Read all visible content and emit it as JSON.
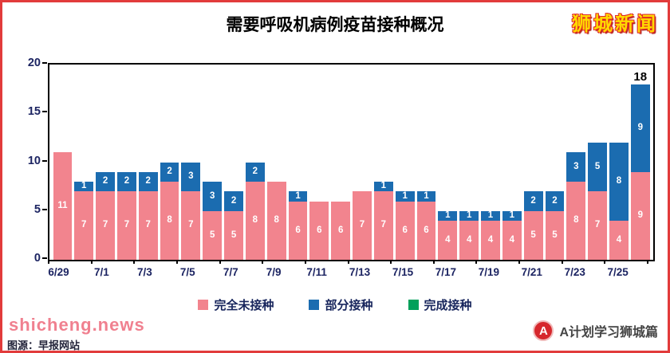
{
  "page": {
    "title": "需要呼吸机病例疫苗接种概况",
    "brand": "狮城新闻",
    "watermark": "shicheng.news",
    "source_note": "图源：早报网站",
    "footer_brand": "A计划学习狮城篇",
    "footer_logo_letter": "A"
  },
  "chart_data": {
    "type": "bar",
    "stacked": true,
    "title": "需要呼吸机病例疫苗接种概况",
    "categories": [
      "6/29",
      "6/30",
      "7/1",
      "7/2",
      "7/3",
      "7/4",
      "7/5",
      "7/6",
      "7/7",
      "7/8",
      "7/9",
      "7/10",
      "7/11",
      "7/12",
      "7/13",
      "7/14",
      "7/15",
      "7/16",
      "7/17",
      "7/18",
      "7/19",
      "7/20",
      "7/21",
      "7/22",
      "7/23",
      "7/24",
      "7/25",
      "7/26"
    ],
    "x_tick_interval": 2,
    "ylim": [
      0,
      20
    ],
    "yticks": [
      0,
      5,
      10,
      15,
      20
    ],
    "grid": false,
    "legend_position": "bottom",
    "series": [
      {
        "name": "完全未接种",
        "color": "#f2848e",
        "values": [
          11,
          7,
          7,
          7,
          7,
          8,
          7,
          5,
          5,
          8,
          8,
          6,
          6,
          6,
          7,
          7,
          6,
          6,
          4,
          4,
          4,
          4,
          5,
          5,
          8,
          7,
          4,
          9
        ]
      },
      {
        "name": "部分接种",
        "color": "#1b6cb0",
        "values": [
          0,
          1,
          2,
          2,
          2,
          2,
          3,
          3,
          2,
          2,
          0,
          1,
          0,
          0,
          0,
          1,
          1,
          1,
          1,
          1,
          1,
          1,
          2,
          2,
          3,
          5,
          8,
          9
        ]
      },
      {
        "name": "完成接种",
        "color": "#00a05a",
        "values": [
          0,
          0,
          0,
          0,
          0,
          0,
          0,
          0,
          0,
          0,
          0,
          0,
          0,
          0,
          0,
          0,
          0,
          0,
          0,
          0,
          0,
          0,
          0,
          0,
          0,
          0,
          0,
          0
        ]
      }
    ],
    "annotation": {
      "index": 27,
      "text": "18"
    }
  }
}
